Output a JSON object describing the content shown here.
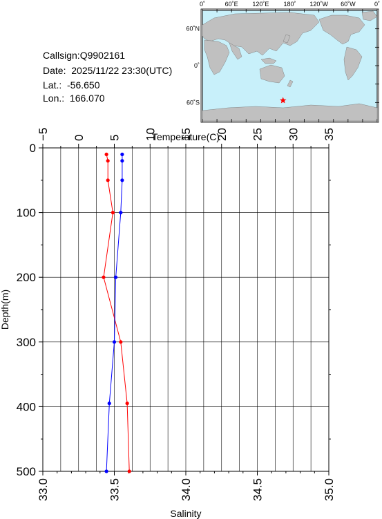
{
  "info": {
    "callsign": "Callsign:Q9902161",
    "date": "Date:  2025/11/22 23:30(UTC)",
    "lat": "Lat.:  -56.650",
    "lon": "Lon.:  166.070"
  },
  "map": {
    "lon_labels": [
      "0˚",
      "60˚E",
      "120˚E",
      "180˚",
      "120˚W",
      "60˚W",
      "0˚"
    ],
    "lat_labels": [
      "60˚N",
      "0˚",
      "60˚S"
    ],
    "station": {
      "lon": 166.07,
      "lat": -56.65
    },
    "colors": {
      "ocean": "#c8f0fa",
      "land": "#c0c0c0",
      "marker": "#ff0000"
    }
  },
  "chart_data": {
    "type": "line",
    "ylabel": "Depth(m)",
    "x_top_label": "Temperature(C)",
    "x_bottom_label": "Salinity",
    "depth_range": [
      0,
      500
    ],
    "depth_ticks": [
      "0",
      "100",
      "200",
      "300",
      "400",
      "500"
    ],
    "temperature_range": [
      -5,
      35
    ],
    "temperature_ticks": [
      "−5",
      "0",
      "5",
      "10",
      "15",
      "20",
      "25",
      "30",
      "35"
    ],
    "salinity_range": [
      33.0,
      35.0
    ],
    "salinity_ticks": [
      "33.0",
      "33.5",
      "34.0",
      "34.5",
      "35.0"
    ],
    "grid": true,
    "series": [
      {
        "axis": "temperature",
        "color": "#ff0000",
        "points": [
          {
            "depth": 10,
            "value": 3.9
          },
          {
            "depth": 20,
            "value": 4.1
          },
          {
            "depth": 50,
            "value": 4.1
          },
          {
            "depth": 100,
            "value": 4.8
          },
          {
            "depth": 200,
            "value": 3.5
          },
          {
            "depth": 300,
            "value": 5.9
          },
          {
            "depth": 395,
            "value": 6.8
          },
          {
            "depth": 500,
            "value": 7.1
          }
        ]
      },
      {
        "axis": "salinity",
        "color": "#0000ff",
        "points": [
          {
            "depth": 10,
            "value": 33.555
          },
          {
            "depth": 20,
            "value": 33.555
          },
          {
            "depth": 50,
            "value": 33.555
          },
          {
            "depth": 100,
            "value": 33.545
          },
          {
            "depth": 200,
            "value": 33.51
          },
          {
            "depth": 300,
            "value": 33.5
          },
          {
            "depth": 395,
            "value": 33.465
          },
          {
            "depth": 500,
            "value": 33.445
          }
        ]
      }
    ]
  }
}
